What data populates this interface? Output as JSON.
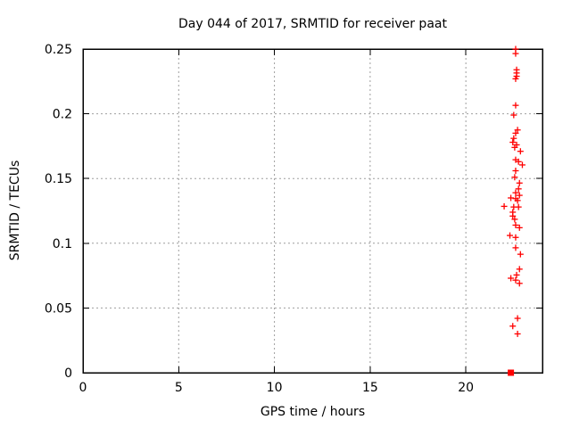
{
  "chart_data": {
    "type": "scatter",
    "title": "Day 044 of 2017, SRMTID for receiver paat",
    "xlabel": "GPS time / hours",
    "ylabel": "SRMTID / TECUs",
    "xlim": [
      0,
      24
    ],
    "ylim": [
      0,
      0.25
    ],
    "xticks": [
      0,
      5,
      10,
      15,
      20
    ],
    "xtick_labels": [
      "0",
      "5",
      "10",
      "15",
      "20"
    ],
    "yticks": [
      0,
      0.05,
      0.1,
      0.15,
      0.2,
      0.25
    ],
    "ytick_labels": [
      "0",
      "0.05",
      "0.1",
      "0.15",
      "0.2",
      "0.25"
    ],
    "grid": true,
    "legend": "none",
    "background": "#ffffff",
    "axis_color": "#000000",
    "grid_color": "#9e9e9e",
    "series": [
      {
        "name": "srmtid-values",
        "marker": "plus",
        "color": "#ff0000",
        "points": [
          [
            22.6,
            0.25
          ],
          [
            22.6,
            0.2465
          ],
          [
            22.65,
            0.234
          ],
          [
            22.65,
            0.2315
          ],
          [
            22.65,
            0.229
          ],
          [
            22.6,
            0.227
          ],
          [
            22.6,
            0.2065
          ],
          [
            22.5,
            0.199
          ],
          [
            22.7,
            0.1875
          ],
          [
            22.6,
            0.185
          ],
          [
            22.5,
            0.181
          ],
          [
            22.45,
            0.178
          ],
          [
            22.65,
            0.176
          ],
          [
            22.55,
            0.174
          ],
          [
            22.85,
            0.171
          ],
          [
            22.6,
            0.1645
          ],
          [
            22.75,
            0.163
          ],
          [
            22.95,
            0.1605
          ],
          [
            22.6,
            0.156
          ],
          [
            22.55,
            0.151
          ],
          [
            22.8,
            0.1465
          ],
          [
            22.75,
            0.142
          ],
          [
            22.6,
            0.139
          ],
          [
            22.8,
            0.137
          ],
          [
            22.35,
            0.135
          ],
          [
            22.6,
            0.1345
          ],
          [
            22.7,
            0.133
          ],
          [
            22.0,
            0.1285
          ],
          [
            22.5,
            0.128
          ],
          [
            22.75,
            0.128
          ],
          [
            22.45,
            0.124
          ],
          [
            22.45,
            0.121
          ],
          [
            22.55,
            0.1185
          ],
          [
            22.6,
            0.114
          ],
          [
            22.8,
            0.112
          ],
          [
            22.3,
            0.106
          ],
          [
            22.6,
            0.1045
          ],
          [
            22.6,
            0.0965
          ],
          [
            22.85,
            0.0915
          ],
          [
            22.8,
            0.08
          ],
          [
            22.65,
            0.0755
          ],
          [
            22.35,
            0.073
          ],
          [
            22.6,
            0.0715
          ],
          [
            22.8,
            0.069
          ],
          [
            22.7,
            0.042
          ],
          [
            22.45,
            0.036
          ],
          [
            22.7,
            0.03
          ]
        ]
      },
      {
        "name": "zero-level-marker",
        "marker": "filled-square",
        "color": "#ff0000",
        "points": [
          [
            22.35,
            0.0
          ]
        ]
      }
    ]
  }
}
